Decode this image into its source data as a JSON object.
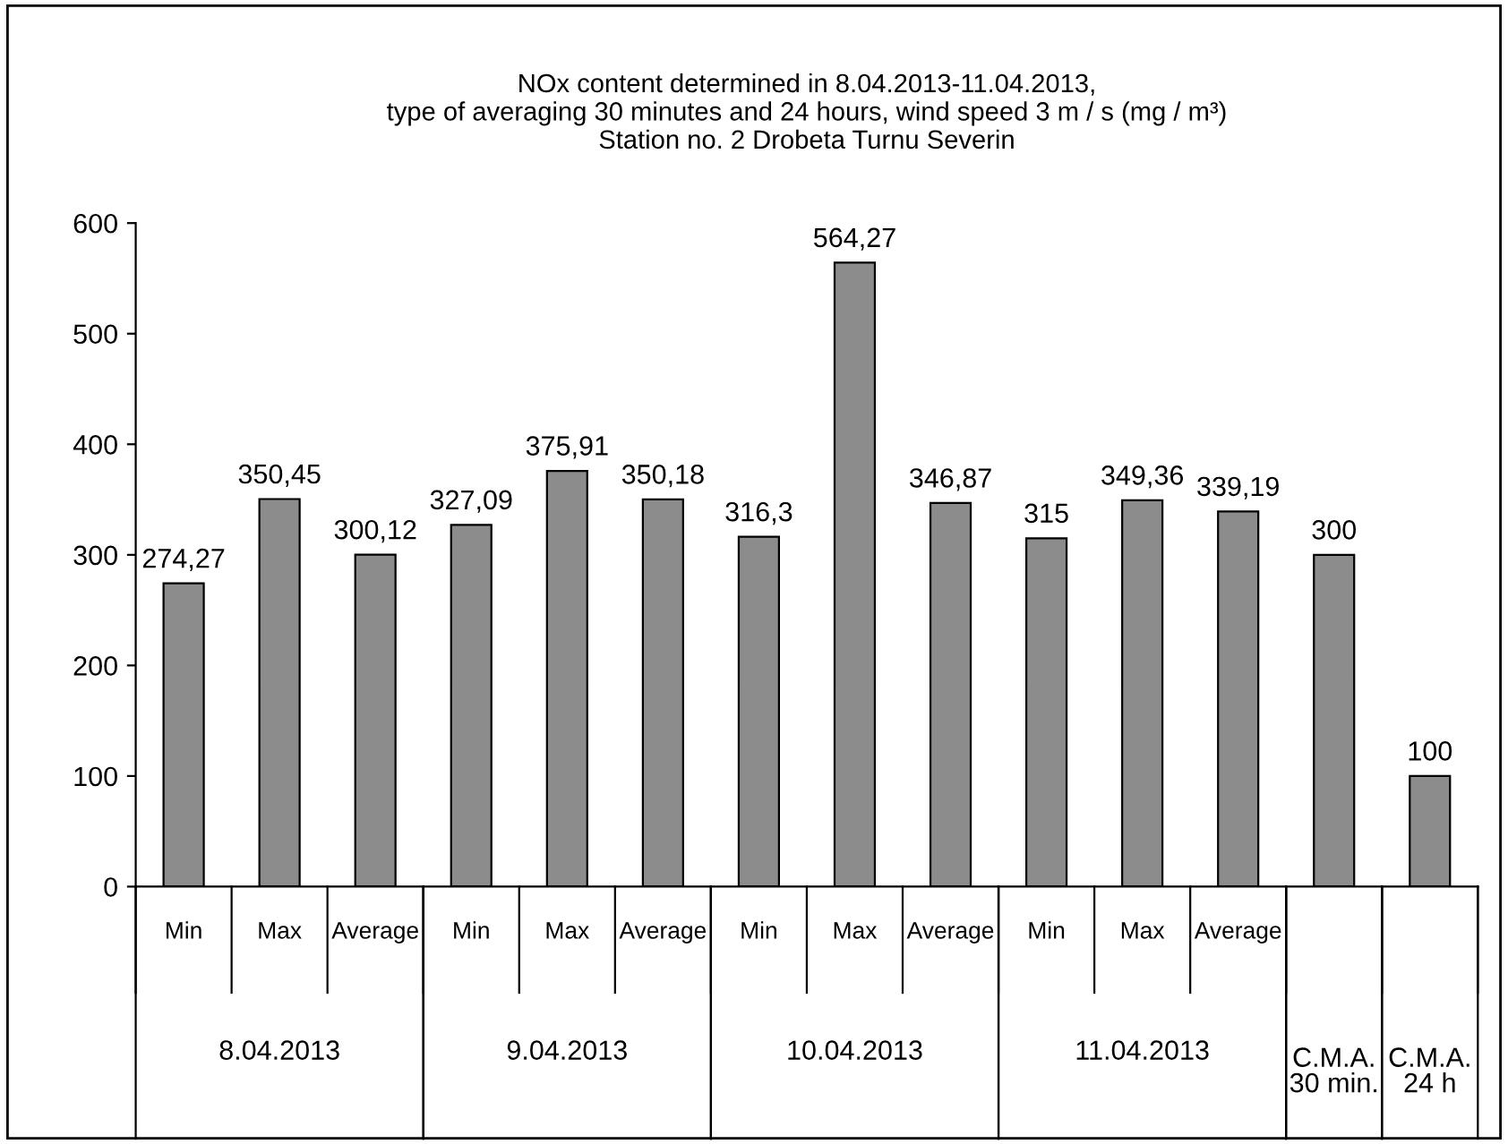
{
  "chart_data": {
    "type": "bar",
    "title": "NOx content determined in 8.04.2013-11.04.2013,\ntype of averaging 30 minutes and 24 hours, wind speed 3 m / s (mg / m³)\nStation no. 2 Drobeta Turnu Severin",
    "categories": [
      "Min",
      "Max",
      "Average",
      "Min",
      "Max",
      "Average",
      "Min",
      "Max",
      "Average",
      "Min",
      "Max",
      "Average",
      null,
      null
    ],
    "values": [
      274.27,
      350.45,
      300.12,
      327.09,
      375.91,
      350.18,
      316.3,
      564.27,
      346.87,
      315,
      349.36,
      339.19,
      300,
      100
    ],
    "value_labels": [
      "274,27",
      "350,45",
      "300,12",
      "327,09",
      "375,91",
      "350,18",
      "316,3",
      "564,27",
      "346,87",
      "315",
      "349,36",
      "339,19",
      "300",
      "100"
    ],
    "color": "#8c8c8c",
    "ylim": [
      0,
      600
    ],
    "yticks": [
      0,
      100,
      200,
      300,
      400,
      500,
      600
    ],
    "grid": false,
    "legend": false,
    "annotations": [
      "8.04.2013",
      "9.04.2013",
      "10.04.2013",
      "11.04.2013",
      "C.M.A.\n30 min.",
      "C.M.A.\n24 h"
    ]
  }
}
